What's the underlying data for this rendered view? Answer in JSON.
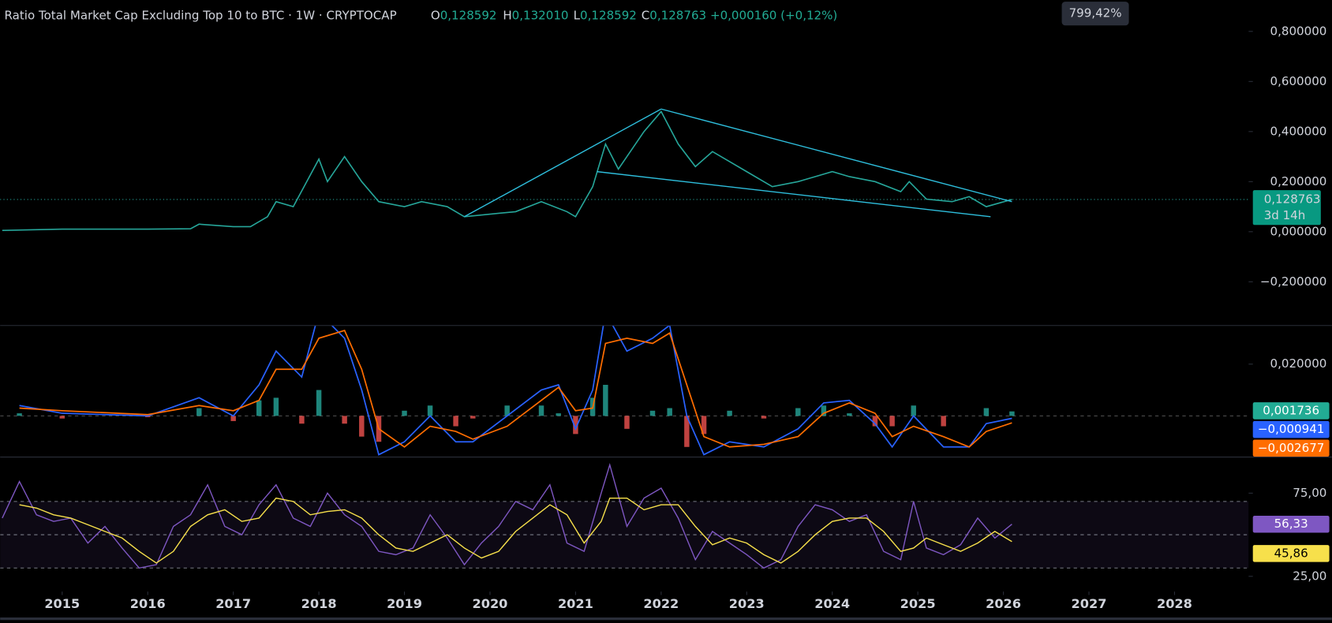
{
  "header": {
    "title": "Ratio Total Market Cap Excluding Top 10 to BTC · 1W · CRYPTOCAP",
    "ohlc": [
      {
        "label": "O",
        "value": "0,128592"
      },
      {
        "label": "H",
        "value": "0,132010"
      },
      {
        "label": "L",
        "value": "0,128592"
      },
      {
        "label": "C",
        "value": "0,128763"
      }
    ],
    "change": "+0,000160 (+0,12%)",
    "scale_tooltip": "799,42%"
  },
  "chart_data": [
    {
      "type": "line",
      "color": "#26a69a",
      "x": [
        2014.3,
        2015,
        2015.5,
        2016,
        2016.5,
        2016.6,
        2017.0,
        2017.2,
        2017.4,
        2017.5,
        2017.7,
        2018.0,
        2018.1,
        2018.3,
        2018.5,
        2018.7,
        2019.0,
        2019.2,
        2019.5,
        2019.7,
        2020.0,
        2020.3,
        2020.6,
        2020.9,
        2021.0,
        2021.2,
        2021.35,
        2021.5,
        2021.8,
        2022.0,
        2022.2,
        2022.4,
        2022.6,
        2022.8,
        2023.0,
        2023.3,
        2023.6,
        2023.8,
        2024.0,
        2024.2,
        2024.5,
        2024.8,
        2024.9,
        2025.1,
        2025.4,
        2025.6,
        2025.8,
        2026.1
      ],
      "values": [
        0.005,
        0.01,
        0.01,
        0.01,
        0.012,
        0.03,
        0.02,
        0.02,
        0.06,
        0.12,
        0.1,
        0.29,
        0.2,
        0.3,
        0.2,
        0.12,
        0.1,
        0.12,
        0.1,
        0.06,
        0.07,
        0.08,
        0.12,
        0.08,
        0.06,
        0.18,
        0.35,
        0.25,
        0.4,
        0.48,
        0.35,
        0.26,
        0.32,
        0.28,
        0.24,
        0.18,
        0.2,
        0.22,
        0.24,
        0.22,
        0.2,
        0.16,
        0.2,
        0.13,
        0.12,
        0.14,
        0.1,
        0.128763
      ],
      "trendlines": [
        {
          "x": [
            2019.7,
            2022.0
          ],
          "y": [
            0.06,
            0.49
          ]
        },
        {
          "x": [
            2022.0,
            2026.1
          ],
          "y": [
            0.49,
            0.12
          ]
        },
        {
          "x": [
            2021.25,
            2025.85
          ],
          "y": [
            0.24,
            0.06
          ]
        }
      ],
      "trend_color": "#2ebedc",
      "last_label": {
        "value": 0.128763,
        "label": "0,128763"
      },
      "countdown": "3d 14h",
      "xlim": [
        2014.275,
        2028.866
      ],
      "ylim": [
        -0.3729,
        0.9254
      ],
      "yticks": [
        {
          "value": 0.8,
          "label": "0,800000"
        },
        {
          "value": 0.6,
          "label": "0,600000"
        },
        {
          "value": 0.4,
          "label": "0,400000"
        },
        {
          "value": 0.2,
          "label": "0,200000"
        },
        {
          "value": 0,
          "label": "0,000000"
        },
        {
          "value": -0.2,
          "label": "−0,200000"
        }
      ]
    },
    {
      "type": "macd",
      "x": [
        2014.5,
        2015,
        2016,
        2016.6,
        2017,
        2017.3,
        2017.5,
        2017.8,
        2018,
        2018.3,
        2018.5,
        2018.7,
        2019,
        2019.3,
        2019.6,
        2019.8,
        2020.2,
        2020.6,
        2020.8,
        2021,
        2021.2,
        2021.35,
        2021.6,
        2021.9,
        2022.1,
        2022.3,
        2022.5,
        2022.8,
        2023.2,
        2023.6,
        2023.9,
        2024.2,
        2024.5,
        2024.7,
        2024.95,
        2025.3,
        2025.6,
        2025.8,
        2026.1
      ],
      "histogram": {
        "up_color": "#26a69a",
        "down_color": "#ef5350",
        "label_color": "#22ab94",
        "values": [
          0.001,
          -0.001,
          -0.0005,
          0.003,
          -0.002,
          0.006,
          0.007,
          -0.003,
          0.01,
          -0.003,
          -0.008,
          -0.01,
          0.002,
          0.004,
          -0.004,
          -0.001,
          0.004,
          0.004,
          0.001,
          -0.007,
          0.007,
          0.012,
          -0.005,
          0.002,
          0.003,
          -0.012,
          -0.007,
          0.002,
          -0.001,
          0.003,
          0.004,
          0.001,
          -0.004,
          -0.004,
          0.004,
          -0.004,
          0,
          0.003,
          0.001736
        ],
        "last_label": "0,001736"
      },
      "macd": {
        "color": "#2962ff",
        "values": [
          0.004,
          0.001,
          0,
          0.007,
          0,
          0.012,
          0.025,
          0.015,
          0.04,
          0.03,
          0.01,
          -0.015,
          -0.01,
          0,
          -0.01,
          -0.01,
          0,
          0.01,
          0.012,
          -0.005,
          0.01,
          0.04,
          0.025,
          0.03,
          0.035,
          0,
          -0.015,
          -0.01,
          -0.012,
          -0.005,
          0.005,
          0.006,
          -0.003,
          -0.012,
          0,
          -0.012,
          -0.012,
          -0.003,
          -0.000941
        ],
        "last_label": "−0,000941"
      },
      "signal": {
        "color": "#ff6d00",
        "values": [
          0.003,
          0.002,
          0.0005,
          0.004,
          0.002,
          0.006,
          0.018,
          0.018,
          0.03,
          0.033,
          0.018,
          -0.005,
          -0.012,
          -0.004,
          -0.006,
          -0.009,
          -0.004,
          0.006,
          0.011,
          0.002,
          0.003,
          0.028,
          0.03,
          0.028,
          0.032,
          0.012,
          -0.008,
          -0.012,
          -0.011,
          -0.008,
          0.001,
          0.005,
          0.001,
          -0.008,
          -0.004,
          -0.008,
          -0.012,
          -0.006,
          -0.002677
        ],
        "last_label": "−0,002677"
      },
      "xlim": [
        2014.275,
        2028.866
      ],
      "ylim": [
        -0.01574,
        0.03475
      ],
      "yticks": [
        {
          "value": 0.02,
          "label": "0,020000"
        }
      ],
      "zero_line": 0
    },
    {
      "type": "rsi",
      "x": [
        2014.3,
        2014.5,
        2014.7,
        2014.9,
        2015.1,
        2015.3,
        2015.5,
        2015.7,
        2015.9,
        2016.1,
        2016.3,
        2016.5,
        2016.7,
        2016.9,
        2017.1,
        2017.3,
        2017.5,
        2017.7,
        2017.9,
        2018.1,
        2018.3,
        2018.5,
        2018.7,
        2018.9,
        2019.1,
        2019.3,
        2019.5,
        2019.7,
        2019.9,
        2020.1,
        2020.3,
        2020.5,
        2020.7,
        2020.9,
        2021.1,
        2021.3,
        2021.4,
        2021.6,
        2021.8,
        2022.0,
        2022.2,
        2022.4,
        2022.6,
        2022.8,
        2023.0,
        2023.2,
        2023.4,
        2023.6,
        2023.8,
        2024.0,
        2024.2,
        2024.4,
        2024.6,
        2024.8,
        2024.95,
        2025.1,
        2025.3,
        2025.5,
        2025.7,
        2025.9,
        2026.1
      ],
      "rsi": {
        "color": "#7e57c2",
        "values": [
          60,
          82,
          62,
          58,
          60,
          45,
          55,
          42,
          30,
          32,
          55,
          62,
          80,
          55,
          50,
          68,
          80,
          60,
          55,
          75,
          62,
          55,
          40,
          38,
          42,
          62,
          48,
          32,
          45,
          55,
          70,
          65,
          80,
          45,
          40,
          75,
          92,
          55,
          72,
          78,
          60,
          35,
          52,
          45,
          38,
          30,
          35,
          55,
          68,
          65,
          58,
          62,
          40,
          35,
          70,
          42,
          38,
          44,
          60,
          48,
          56.33
        ],
        "last_label": "56,33"
      },
      "ma": {
        "color": "#f7e04b",
        "values": [
          null,
          68,
          66,
          62,
          60,
          56,
          52,
          48,
          40,
          33,
          40,
          55,
          62,
          65,
          58,
          60,
          72,
          70,
          62,
          64,
          65,
          60,
          50,
          42,
          40,
          45,
          50,
          42,
          36,
          40,
          52,
          60,
          68,
          62,
          45,
          58,
          72,
          72,
          65,
          68,
          68,
          55,
          44,
          48,
          45,
          38,
          33,
          40,
          50,
          58,
          60,
          60,
          52,
          40,
          42,
          48,
          44,
          40,
          45,
          52,
          45.86
        ],
        "last_label": "45,86"
      },
      "levels": [
        70,
        50,
        30
      ],
      "xlim": [
        2014.275,
        2028.866
      ],
      "ylim": [
        15.82,
        96.43
      ],
      "yticks": [
        {
          "value": 75,
          "label": "75,00"
        },
        {
          "value": 25,
          "label": "25,00"
        }
      ],
      "xticks": [
        2015,
        2016,
        2017,
        2018,
        2019,
        2020,
        2021,
        2022,
        2023,
        2024,
        2025,
        2026,
        2027,
        2028
      ]
    }
  ]
}
